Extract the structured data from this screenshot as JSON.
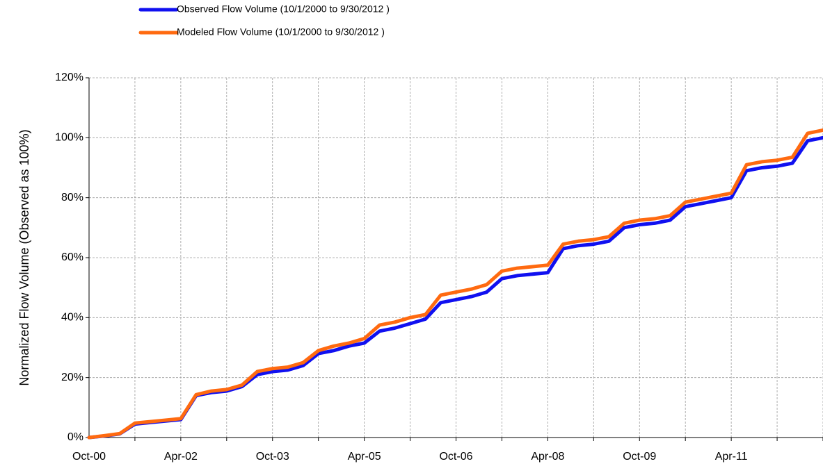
{
  "chart_data": {
    "type": "line",
    "y_label": "Normalized  Flow Volume  (Observed as 100%)",
    "categories": [
      "Oct-00",
      null,
      null,
      null,
      null,
      null,
      "Apr-02",
      null,
      null,
      null,
      null,
      null,
      "Oct-03",
      null,
      null,
      null,
      null,
      null,
      "Apr-05",
      null,
      null,
      null,
      null,
      null,
      "Oct-06",
      null,
      null,
      null,
      null,
      null,
      "Apr-08",
      null,
      null,
      null,
      null,
      null,
      "Oct-09",
      null,
      null,
      null,
      null,
      null,
      "Apr-11",
      null,
      null,
      null,
      null,
      null,
      null
    ],
    "series": [
      {
        "name": "Observed Flow Volume (10/1/2000 to 9/30/2012 )",
        "color": "#1010f0",
        "values": [
          0,
          0.5,
          1.2,
          4.5,
          5,
          5.5,
          6,
          14,
          15,
          15.5,
          17,
          21,
          22,
          22.5,
          24,
          28,
          29,
          30.5,
          31.5,
          35.5,
          36.5,
          38,
          39.5,
          45,
          46,
          47,
          48.5,
          53,
          54,
          54.5,
          55,
          63,
          64,
          64.5,
          65.5,
          70,
          71,
          71.5,
          72.5,
          77,
          78,
          79,
          80,
          89,
          90,
          90.5,
          91.5,
          99,
          100
        ]
      },
      {
        "name": "Modeled Flow Volume (10/1/2000 to 9/30/2012 )",
        "color": "#ff6a10",
        "values": [
          0,
          0.6,
          1.3,
          4.8,
          5.3,
          5.8,
          6.3,
          14.3,
          15.5,
          16,
          17.5,
          22,
          23,
          23.5,
          25,
          29,
          30.5,
          31.5,
          33,
          37.5,
          38.5,
          40,
          41,
          47.5,
          48.5,
          49.5,
          51,
          55.5,
          56.5,
          57,
          57.5,
          64.5,
          65.5,
          66,
          67,
          71.5,
          72.5,
          73,
          74,
          78.5,
          79.5,
          80.5,
          81.5,
          91,
          92,
          92.5,
          93.5,
          101.5,
          102.5
        ]
      }
    ],
    "ylim": [
      0,
      120
    ],
    "yticks": [
      {
        "value": 0,
        "label": "0%"
      },
      {
        "value": 20,
        "label": "20%"
      },
      {
        "value": 40,
        "label": "40%"
      },
      {
        "value": 60,
        "label": "60%"
      },
      {
        "value": 80,
        "label": "80%"
      },
      {
        "value": 100,
        "label": "100%"
      },
      {
        "value": 120,
        "label": "120%"
      }
    ],
    "grid": true
  }
}
